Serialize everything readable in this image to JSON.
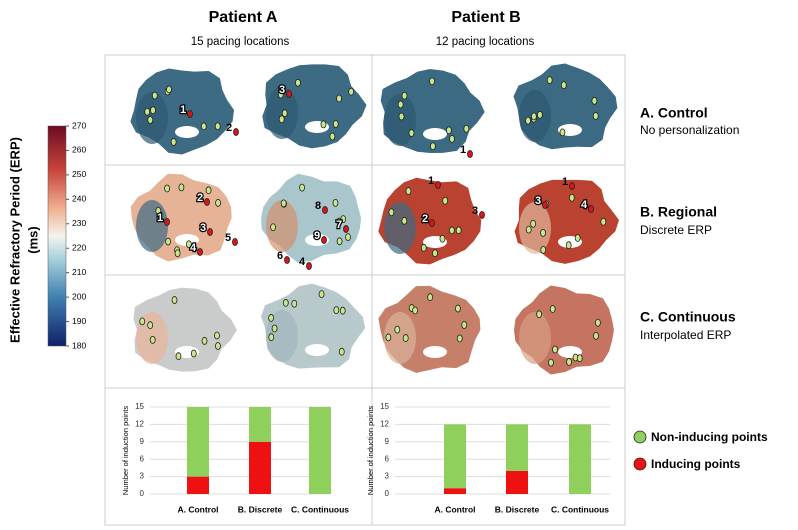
{
  "columns": [
    {
      "title": "Patient A",
      "subtitle": "15 pacing locations"
    },
    {
      "title": "Patient B",
      "subtitle": "12 pacing locations"
    }
  ],
  "rows": [
    {
      "title": "A. Control",
      "subtitle": "No personalization"
    },
    {
      "title": "B. Regional",
      "subtitle": "Discrete ERP"
    },
    {
      "title": "C. Continuous",
      "subtitle": "Interpolated ERP"
    }
  ],
  "colorbar": {
    "label": [
      "Effective Refractory Period (ERP)",
      "(ms)"
    ],
    "lim": [
      180,
      270
    ],
    "ticks": [
      180,
      190,
      200,
      210,
      220,
      230,
      240,
      250,
      260,
      270
    ]
  },
  "panels": [
    {
      "labels": [
        "1",
        "2"
      ]
    },
    {
      "labels": [
        "3"
      ]
    },
    {
      "labels": [
        "1"
      ]
    },
    {
      "labels": []
    },
    {
      "labels": [
        "1",
        "2",
        "3",
        "4",
        "5"
      ]
    },
    {
      "labels": [
        "8",
        "7",
        "9",
        "6",
        "4"
      ]
    },
    {
      "labels": [
        "1",
        "2",
        "3"
      ]
    },
    {
      "labels": [
        "1",
        "3",
        "4"
      ]
    },
    {
      "labels": []
    },
    {
      "labels": []
    },
    {
      "labels": []
    },
    {
      "labels": []
    }
  ],
  "chart_data": [
    {
      "type": "bar",
      "stacked": true,
      "ylabel": "Number of induction points",
      "categories": [
        "A. Control",
        "B. Discrete",
        "C. Continuous"
      ],
      "series": [
        {
          "name": "Inducing points",
          "color": "#ee1111",
          "values": [
            3,
            9,
            0
          ]
        },
        {
          "name": "Non-inducing points",
          "color": "#8fd05c",
          "values": [
            12,
            6,
            15
          ]
        }
      ],
      "ylim": [
        0,
        15
      ],
      "yticks": [
        0,
        3,
        6,
        9,
        12,
        15
      ],
      "grid": true
    },
    {
      "type": "bar",
      "stacked": true,
      "ylabel": "Number of induction points",
      "categories": [
        "A. Control",
        "B. Discrete",
        "C. Continuous"
      ],
      "series": [
        {
          "name": "Inducing points",
          "color": "#ee1111",
          "values": [
            1,
            4,
            0
          ]
        },
        {
          "name": "Non-inducing points",
          "color": "#8fd05c",
          "values": [
            11,
            8,
            12
          ]
        }
      ],
      "ylim": [
        0,
        15
      ],
      "yticks": [
        0,
        3,
        6,
        9,
        12,
        15
      ],
      "grid": true
    }
  ]
}
